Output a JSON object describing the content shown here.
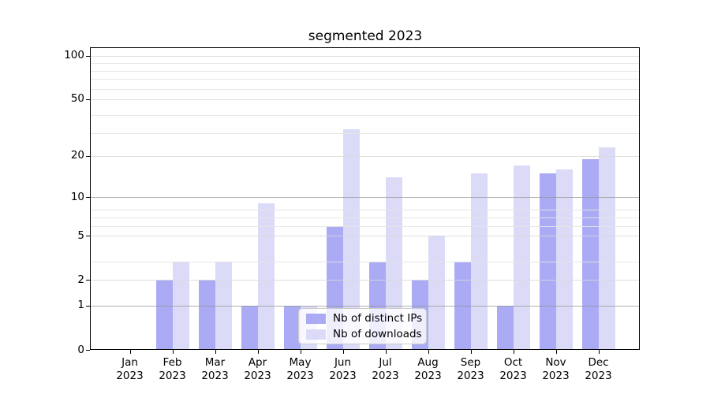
{
  "title": "segmented 2023",
  "legend": {
    "items": [
      {
        "label": "Nb of distinct IPs",
        "color": "#aaaaf5"
      },
      {
        "label": "Nb of downloads",
        "color": "#dbdbf8"
      }
    ]
  },
  "axes": {
    "y_tick_labels": [
      "100",
      "50",
      "20",
      "10",
      "5",
      "2",
      "1",
      "0"
    ],
    "y_tick_values": [
      100,
      50,
      20,
      10,
      5,
      2,
      1,
      0
    ],
    "x_tick_labels": [
      "Jan\n2023",
      "Feb\n2023",
      "Mar\n2023",
      "Apr\n2023",
      "May\n2023",
      "Jun\n2023",
      "Jul\n2023",
      "Aug\n2023",
      "Sep\n2023",
      "Oct\n2023",
      "Nov\n2023",
      "Dec\n2023"
    ]
  },
  "chart_data": {
    "type": "bar",
    "title": "segmented 2023",
    "categories": [
      "Jan 2023",
      "Feb 2023",
      "Mar 2023",
      "Apr 2023",
      "May 2023",
      "Jun 2023",
      "Jul 2023",
      "Aug 2023",
      "Sep 2023",
      "Oct 2023",
      "Nov 2023",
      "Dec 2023"
    ],
    "series": [
      {
        "name": "Nb of distinct IPs",
        "color": "#aaaaf5",
        "values": [
          0,
          2,
          2,
          1,
          1,
          6,
          3,
          2,
          3,
          1,
          15,
          19
        ]
      },
      {
        "name": "Nb of downloads",
        "color": "#dbdbf8",
        "values": [
          0,
          3,
          3,
          9,
          1,
          31,
          14,
          5,
          15,
          17,
          16,
          23
        ]
      }
    ],
    "yscale": "log1p",
    "yticks": [
      0,
      1,
      2,
      5,
      10,
      20,
      50,
      100
    ],
    "minor_grid_values": [
      3,
      6,
      7,
      8,
      29,
      39,
      59,
      69,
      79,
      89
    ],
    "ylim": [
      0,
      112
    ],
    "grid": true,
    "legend_position": "lower center"
  },
  "colors": {
    "background": "#ffffff",
    "bar_distinct_ips": "#aaaaf5",
    "bar_downloads": "#dbdbf8",
    "grid_major_dark": "rgba(150,150,150,0.75)",
    "grid_major_light": "rgba(216,216,216,0.85)",
    "grid_minor": "rgba(228,228,228,0.9)",
    "spine": "#000000",
    "legend_border": "#cccccc"
  }
}
